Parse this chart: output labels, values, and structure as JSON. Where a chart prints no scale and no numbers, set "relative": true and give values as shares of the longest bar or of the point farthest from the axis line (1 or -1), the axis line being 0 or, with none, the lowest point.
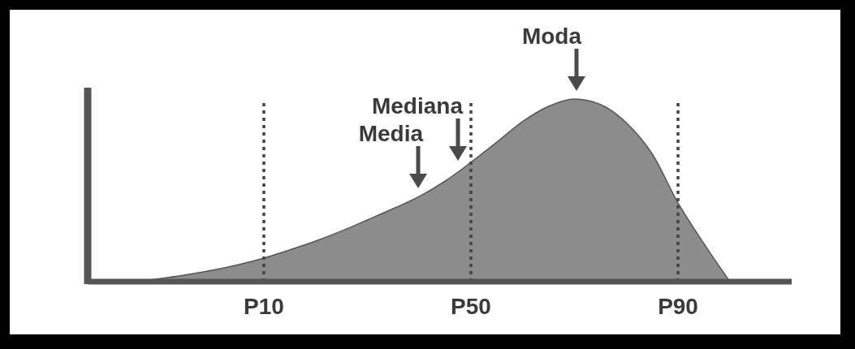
{
  "chart_data": {
    "type": "area",
    "relative": true,
    "color": "#8c8c8c",
    "categories": [
      null,
      null,
      null,
      null,
      null,
      "P10",
      null,
      null,
      null,
      null,
      null,
      null,
      null,
      "P50",
      null,
      null,
      null,
      null,
      null,
      null,
      null,
      "P90",
      null,
      null
    ],
    "values": [
      0,
      0.017,
      0.038,
      0.062,
      0.092,
      0.129,
      0.174,
      0.222,
      0.277,
      0.338,
      0.4,
      0.466,
      0.55,
      0.653,
      0.764,
      0.877,
      0.96,
      1,
      0.97,
      0.87,
      0.7,
      0.431,
      0.208,
      0
    ],
    "ref_lines": [
      {
        "axis": "x",
        "value": "P10",
        "line_style": "dotted",
        "color": "#444444"
      },
      {
        "axis": "x",
        "value": "P50",
        "line_style": "dotted",
        "color": "#444444"
      },
      {
        "axis": "x",
        "value": "P90",
        "line_style": "dotted",
        "color": "#444444"
      }
    ],
    "annotations": [
      "Media",
      "Mediana",
      "Moda"
    ]
  }
}
